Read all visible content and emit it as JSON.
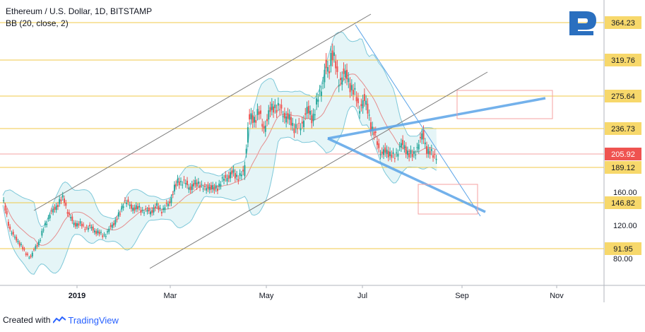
{
  "header": {
    "title": "Ethereum / U.S. Dollar, 1D, BITSTAMP",
    "indicator": "BB (20, close, 2)"
  },
  "footer": {
    "created_with": "Created with",
    "brand": "TradingView"
  },
  "colors": {
    "up": "#26a69a",
    "down": "#ef5350",
    "level_line": "#f0c94a",
    "level_tag": "#f7d86b",
    "price_tag": "#ef5350",
    "bb_fill": "#dff3f5",
    "bb_line": "#7ec8d9",
    "bb_mid": "#e57373",
    "channel": "#7a7a7a",
    "pattern": "#5aa3e8",
    "target_box": "#f4a0a0",
    "logo": "#2a6fbf"
  },
  "chart_data": {
    "type": "candlestick",
    "x_ticks": [
      "2019",
      "Mar",
      "May",
      "Jul",
      "Sep",
      "Nov"
    ],
    "y_ticks": [
      80.0,
      120.0,
      160.0
    ],
    "y_tick_labels": [
      "80.00",
      "120.00",
      "160.00"
    ],
    "levels": [
      {
        "value": 364.23,
        "label": "364.23"
      },
      {
        "value": 319.76,
        "label": "319.76"
      },
      {
        "value": 275.64,
        "label": "275.64"
      },
      {
        "value": 236.73,
        "label": "236.73"
      },
      {
        "value": 189.12,
        "label": "189.12"
      },
      {
        "value": 146.82,
        "label": "146.82"
      },
      {
        "value": 91.95,
        "label": "91.95"
      }
    ],
    "current_price": {
      "value": 205.92,
      "label": "205.92"
    },
    "series": [
      {
        "name": "BB (20, close, 2)",
        "kind": "bollinger"
      }
    ]
  }
}
